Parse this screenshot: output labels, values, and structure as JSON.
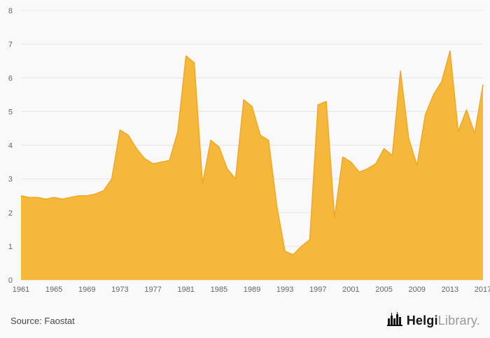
{
  "chart_data": {
    "type": "area",
    "title": "",
    "xlabel": "",
    "ylabel": "",
    "x_range": [
      1961,
      2017
    ],
    "x_ticks": [
      1961,
      1965,
      1969,
      1973,
      1977,
      1981,
      1985,
      1989,
      1993,
      1997,
      2001,
      2005,
      2009,
      2013,
      2017
    ],
    "ylim": [
      0,
      8
    ],
    "y_ticks": [
      0,
      1,
      2,
      3,
      4,
      5,
      6,
      7,
      8
    ],
    "grid": true,
    "legend": false,
    "values": [
      2.5,
      2.45,
      2.45,
      2.4,
      2.45,
      2.4,
      2.45,
      2.5,
      2.5,
      2.55,
      2.65,
      3.0,
      4.45,
      4.3,
      3.9,
      3.6,
      3.45,
      3.5,
      3.55,
      4.4,
      6.65,
      6.45,
      2.85,
      4.15,
      3.95,
      3.3,
      3.0,
      5.35,
      5.15,
      4.3,
      4.15,
      2.2,
      0.85,
      0.75,
      1.0,
      1.2,
      5.2,
      5.3,
      1.85,
      3.65,
      3.5,
      3.2,
      3.3,
      3.45,
      3.9,
      3.7,
      6.2,
      4.2,
      3.4,
      4.9,
      5.5,
      5.9,
      6.8,
      4.4,
      5.05,
      4.35,
      5.8
    ],
    "colors": {
      "area_fill": "#F5B83A",
      "area_stroke": "#EEA827",
      "grid": "#E6E6E6",
      "baseline": "#DDDDDD",
      "axis_text": "#666666",
      "background": "#F9F9F9"
    }
  },
  "footer": {
    "source": "Source: Faostat",
    "logo_primary": "Helgi",
    "logo_secondary": "Library",
    "logo_suffix": "."
  }
}
